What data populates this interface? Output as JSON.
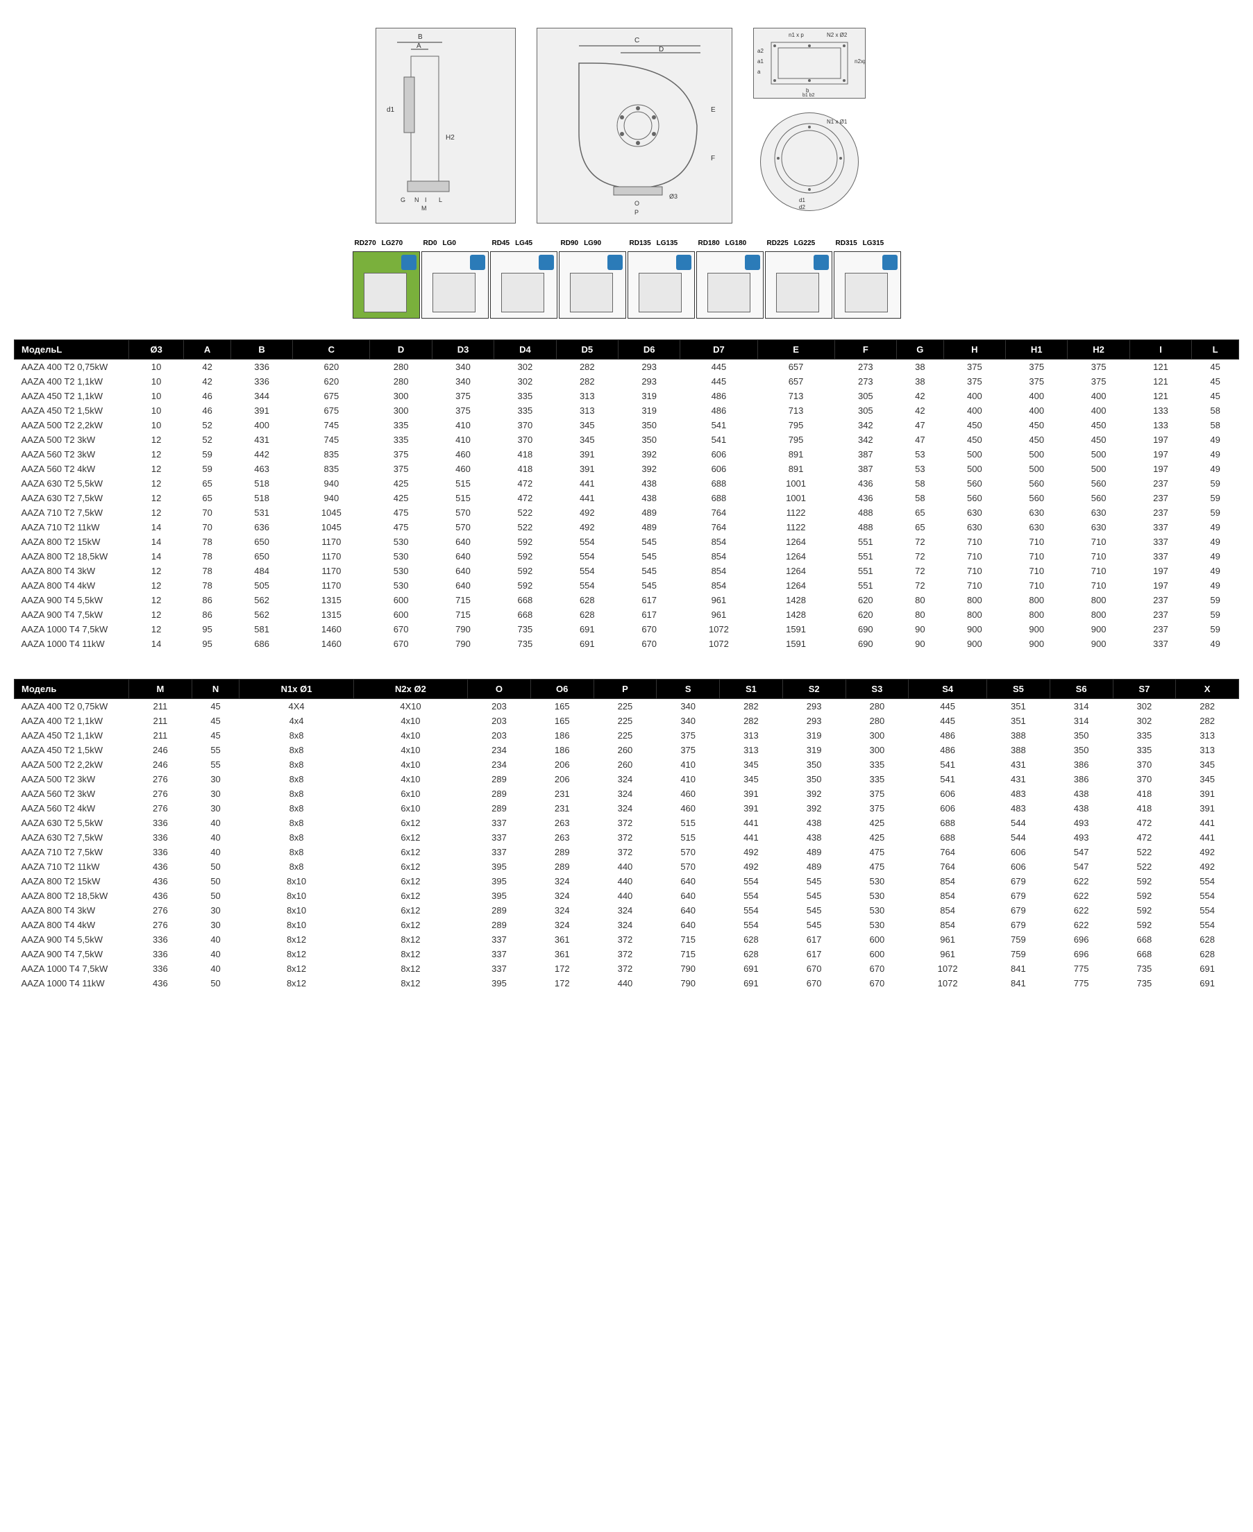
{
  "orientations": [
    {
      "rd": "RD270",
      "lg": "LG270",
      "highlighted": true
    },
    {
      "rd": "RD0",
      "lg": "LG0",
      "highlighted": false
    },
    {
      "rd": "RD45",
      "lg": "LG45",
      "highlighted": false
    },
    {
      "rd": "RD90",
      "lg": "LG90",
      "highlighted": false
    },
    {
      "rd": "RD135",
      "lg": "LG135",
      "highlighted": false
    },
    {
      "rd": "RD180",
      "lg": "LG180",
      "highlighted": false
    },
    {
      "rd": "RD225",
      "lg": "LG225",
      "highlighted": false
    },
    {
      "rd": "RD315",
      "lg": "LG315",
      "highlighted": false
    }
  ],
  "table1": {
    "headers": [
      "МодельL",
      "Ø3",
      "A",
      "B",
      "C",
      "D",
      "D3",
      "D4",
      "D5",
      "D6",
      "D7",
      "E",
      "F",
      "G",
      "H",
      "H1",
      "H2",
      "I",
      "L"
    ],
    "rows": [
      [
        "AAZA 400 T2 0,75kW",
        "10",
        "42",
        "336",
        "620",
        "280",
        "340",
        "302",
        "282",
        "293",
        "445",
        "657",
        "273",
        "38",
        "375",
        "375",
        "375",
        "121",
        "45"
      ],
      [
        "AAZA 400 T2 1,1kW",
        "10",
        "42",
        "336",
        "620",
        "280",
        "340",
        "302",
        "282",
        "293",
        "445",
        "657",
        "273",
        "38",
        "375",
        "375",
        "375",
        "121",
        "45"
      ],
      [
        "AAZA 450 T2 1,1kW",
        "10",
        "46",
        "344",
        "675",
        "300",
        "375",
        "335",
        "313",
        "319",
        "486",
        "713",
        "305",
        "42",
        "400",
        "400",
        "400",
        "121",
        "45"
      ],
      [
        "AAZA 450 T2 1,5kW",
        "10",
        "46",
        "391",
        "675",
        "300",
        "375",
        "335",
        "313",
        "319",
        "486",
        "713",
        "305",
        "42",
        "400",
        "400",
        "400",
        "133",
        "58"
      ],
      [
        "AAZA 500 T2 2,2kW",
        "10",
        "52",
        "400",
        "745",
        "335",
        "410",
        "370",
        "345",
        "350",
        "541",
        "795",
        "342",
        "47",
        "450",
        "450",
        "450",
        "133",
        "58"
      ],
      [
        "AAZA 500 T2 3kW",
        "12",
        "52",
        "431",
        "745",
        "335",
        "410",
        "370",
        "345",
        "350",
        "541",
        "795",
        "342",
        "47",
        "450",
        "450",
        "450",
        "197",
        "49"
      ],
      [
        "AAZA 560 T2 3kW",
        "12",
        "59",
        "442",
        "835",
        "375",
        "460",
        "418",
        "391",
        "392",
        "606",
        "891",
        "387",
        "53",
        "500",
        "500",
        "500",
        "197",
        "49"
      ],
      [
        "AAZA 560 T2 4kW",
        "12",
        "59",
        "463",
        "835",
        "375",
        "460",
        "418",
        "391",
        "392",
        "606",
        "891",
        "387",
        "53",
        "500",
        "500",
        "500",
        "197",
        "49"
      ],
      [
        "AAZA 630 T2 5,5kW",
        "12",
        "65",
        "518",
        "940",
        "425",
        "515",
        "472",
        "441",
        "438",
        "688",
        "1001",
        "436",
        "58",
        "560",
        "560",
        "560",
        "237",
        "59"
      ],
      [
        "AAZA 630 T2 7,5kW",
        "12",
        "65",
        "518",
        "940",
        "425",
        "515",
        "472",
        "441",
        "438",
        "688",
        "1001",
        "436",
        "58",
        "560",
        "560",
        "560",
        "237",
        "59"
      ],
      [
        "AAZA 710 T2 7,5kW",
        "12",
        "70",
        "531",
        "1045",
        "475",
        "570",
        "522",
        "492",
        "489",
        "764",
        "1122",
        "488",
        "65",
        "630",
        "630",
        "630",
        "237",
        "59"
      ],
      [
        "AAZA 710 T2 11kW",
        "14",
        "70",
        "636",
        "1045",
        "475",
        "570",
        "522",
        "492",
        "489",
        "764",
        "1122",
        "488",
        "65",
        "630",
        "630",
        "630",
        "337",
        "49"
      ],
      [
        "AAZA 800 T2 15kW",
        "14",
        "78",
        "650",
        "1170",
        "530",
        "640",
        "592",
        "554",
        "545",
        "854",
        "1264",
        "551",
        "72",
        "710",
        "710",
        "710",
        "337",
        "49"
      ],
      [
        "AAZA 800 T2 18,5kW",
        "14",
        "78",
        "650",
        "1170",
        "530",
        "640",
        "592",
        "554",
        "545",
        "854",
        "1264",
        "551",
        "72",
        "710",
        "710",
        "710",
        "337",
        "49"
      ],
      [
        "AAZA 800 T4 3kW",
        "12",
        "78",
        "484",
        "1170",
        "530",
        "640",
        "592",
        "554",
        "545",
        "854",
        "1264",
        "551",
        "72",
        "710",
        "710",
        "710",
        "197",
        "49"
      ],
      [
        "AAZA 800 T4 4kW",
        "12",
        "78",
        "505",
        "1170",
        "530",
        "640",
        "592",
        "554",
        "545",
        "854",
        "1264",
        "551",
        "72",
        "710",
        "710",
        "710",
        "197",
        "49"
      ],
      [
        "AAZA 900 T4 5,5kW",
        "12",
        "86",
        "562",
        "1315",
        "600",
        "715",
        "668",
        "628",
        "617",
        "961",
        "1428",
        "620",
        "80",
        "800",
        "800",
        "800",
        "237",
        "59"
      ],
      [
        "AAZA 900 T4 7,5kW",
        "12",
        "86",
        "562",
        "1315",
        "600",
        "715",
        "668",
        "628",
        "617",
        "961",
        "1428",
        "620",
        "80",
        "800",
        "800",
        "800",
        "237",
        "59"
      ],
      [
        "AAZA 1000 T4 7,5kW",
        "12",
        "95",
        "581",
        "1460",
        "670",
        "790",
        "735",
        "691",
        "670",
        "1072",
        "1591",
        "690",
        "90",
        "900",
        "900",
        "900",
        "237",
        "59"
      ],
      [
        "AAZA 1000 T4 11kW",
        "14",
        "95",
        "686",
        "1460",
        "670",
        "790",
        "735",
        "691",
        "670",
        "1072",
        "1591",
        "690",
        "90",
        "900",
        "900",
        "900",
        "337",
        "49"
      ]
    ]
  },
  "table2": {
    "headers": [
      "Модель",
      "M",
      "N",
      "N1x Ø1",
      "N2x Ø2",
      "O",
      "O6",
      "P",
      "S",
      "S1",
      "S2",
      "S3",
      "S4",
      "S5",
      "S6",
      "S7",
      "X"
    ],
    "rows": [
      [
        "AAZA 400 T2 0,75kW",
        "211",
        "45",
        "4X4",
        "4X10",
        "203",
        "165",
        "225",
        "340",
        "282",
        "293",
        "280",
        "445",
        "351",
        "314",
        "302",
        "282"
      ],
      [
        "AAZA 400 T2 1,1kW",
        "211",
        "45",
        "4x4",
        "4x10",
        "203",
        "165",
        "225",
        "340",
        "282",
        "293",
        "280",
        "445",
        "351",
        "314",
        "302",
        "282"
      ],
      [
        "AAZA 450 T2 1,1kW",
        "211",
        "45",
        "8x8",
        "4x10",
        "203",
        "186",
        "225",
        "375",
        "313",
        "319",
        "300",
        "486",
        "388",
        "350",
        "335",
        "313"
      ],
      [
        "AAZA 450 T2 1,5kW",
        "246",
        "55",
        "8x8",
        "4x10",
        "234",
        "186",
        "260",
        "375",
        "313",
        "319",
        "300",
        "486",
        "388",
        "350",
        "335",
        "313"
      ],
      [
        "AAZA 500 T2 2,2kW",
        "246",
        "55",
        "8x8",
        "4x10",
        "234",
        "206",
        "260",
        "410",
        "345",
        "350",
        "335",
        "541",
        "431",
        "386",
        "370",
        "345"
      ],
      [
        "AAZA 500 T2 3kW",
        "276",
        "30",
        "8x8",
        "4x10",
        "289",
        "206",
        "324",
        "410",
        "345",
        "350",
        "335",
        "541",
        "431",
        "386",
        "370",
        "345"
      ],
      [
        "AAZA 560 T2 3kW",
        "276",
        "30",
        "8x8",
        "6x10",
        "289",
        "231",
        "324",
        "460",
        "391",
        "392",
        "375",
        "606",
        "483",
        "438",
        "418",
        "391"
      ],
      [
        "AAZA 560 T2 4kW",
        "276",
        "30",
        "8x8",
        "6x10",
        "289",
        "231",
        "324",
        "460",
        "391",
        "392",
        "375",
        "606",
        "483",
        "438",
        "418",
        "391"
      ],
      [
        "AAZA 630 T2 5,5kW",
        "336",
        "40",
        "8x8",
        "6x12",
        "337",
        "263",
        "372",
        "515",
        "441",
        "438",
        "425",
        "688",
        "544",
        "493",
        "472",
        "441"
      ],
      [
        "AAZA 630 T2 7,5kW",
        "336",
        "40",
        "8x8",
        "6x12",
        "337",
        "263",
        "372",
        "515",
        "441",
        "438",
        "425",
        "688",
        "544",
        "493",
        "472",
        "441"
      ],
      [
        "AAZA 710 T2 7,5kW",
        "336",
        "40",
        "8x8",
        "6x12",
        "337",
        "289",
        "372",
        "570",
        "492",
        "489",
        "475",
        "764",
        "606",
        "547",
        "522",
        "492"
      ],
      [
        "AAZA 710 T2 11kW",
        "436",
        "50",
        "8x8",
        "6x12",
        "395",
        "289",
        "440",
        "570",
        "492",
        "489",
        "475",
        "764",
        "606",
        "547",
        "522",
        "492"
      ],
      [
        "AAZA 800 T2 15kW",
        "436",
        "50",
        "8x10",
        "6x12",
        "395",
        "324",
        "440",
        "640",
        "554",
        "545",
        "530",
        "854",
        "679",
        "622",
        "592",
        "554"
      ],
      [
        "AAZA 800 T2 18,5kW",
        "436",
        "50",
        "8x10",
        "6x12",
        "395",
        "324",
        "440",
        "640",
        "554",
        "545",
        "530",
        "854",
        "679",
        "622",
        "592",
        "554"
      ],
      [
        "AAZA 800 T4 3kW",
        "276",
        "30",
        "8x10",
        "6x12",
        "289",
        "324",
        "324",
        "640",
        "554",
        "545",
        "530",
        "854",
        "679",
        "622",
        "592",
        "554"
      ],
      [
        "AAZA 800 T4 4kW",
        "276",
        "30",
        "8x10",
        "6x12",
        "289",
        "324",
        "324",
        "640",
        "554",
        "545",
        "530",
        "854",
        "679",
        "622",
        "592",
        "554"
      ],
      [
        "AAZA 900 T4 5,5kW",
        "336",
        "40",
        "8x12",
        "8x12",
        "337",
        "361",
        "372",
        "715",
        "628",
        "617",
        "600",
        "961",
        "759",
        "696",
        "668",
        "628"
      ],
      [
        "AAZA 900 T4 7,5kW",
        "336",
        "40",
        "8x12",
        "8x12",
        "337",
        "361",
        "372",
        "715",
        "628",
        "617",
        "600",
        "961",
        "759",
        "696",
        "668",
        "628"
      ],
      [
        "AAZA 1000 T4 7,5kW",
        "336",
        "40",
        "8x12",
        "8x12",
        "337",
        "172",
        "372",
        "790",
        "691",
        "670",
        "670",
        "1072",
        "841",
        "775",
        "735",
        "691"
      ],
      [
        "AAZA 1000 T4 11kW",
        "436",
        "50",
        "8x12",
        "8x12",
        "395",
        "172",
        "440",
        "790",
        "691",
        "670",
        "670",
        "1072",
        "841",
        "775",
        "735",
        "691"
      ]
    ]
  },
  "diagram_labels": {
    "left": [
      "A",
      "B",
      "d1",
      "H2",
      "G",
      "N",
      "I",
      "M",
      "L"
    ],
    "center": [
      "C",
      "D",
      "E",
      "F",
      "O",
      "P",
      "Ø3"
    ],
    "right_top": [
      "n1 x p",
      "N2 x Ø2",
      "a2",
      "a1",
      "a",
      "n2 x p",
      "b",
      "b1",
      "b2"
    ],
    "right_bottom": [
      "N1 x Ø1",
      "d1",
      "d2"
    ]
  },
  "colors": {
    "header_bg": "#000000",
    "header_text": "#ffffff",
    "orientation_highlight": "#7ab03c",
    "orientation_icon": "#2b7bb8",
    "text": "#333333"
  }
}
